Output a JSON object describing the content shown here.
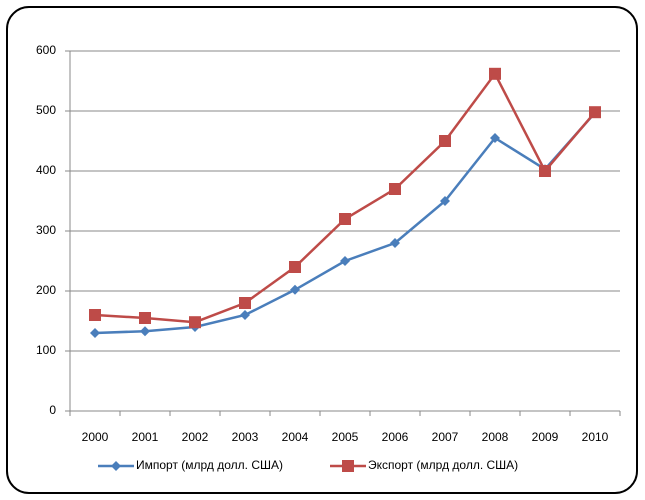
{
  "chart_data": {
    "type": "line",
    "categories": [
      "2000",
      "2001",
      "2002",
      "2003",
      "2004",
      "2005",
      "2006",
      "2007",
      "2008",
      "2009",
      "2010"
    ],
    "series": [
      {
        "name": "Импорт (млрд долл. США)",
        "color": "#4a7ebb",
        "marker": "diamond",
        "values": [
          130,
          133,
          140,
          160,
          202,
          250,
          280,
          350,
          455,
          403,
          497
        ]
      },
      {
        "name": "Экспорт (млрд долл. США)",
        "color": "#be4b48",
        "marker": "square",
        "values": [
          160,
          155,
          148,
          180,
          240,
          320,
          370,
          450,
          562,
          400,
          498
        ]
      }
    ],
    "ylim": [
      0,
      600
    ],
    "yticks": [
      0,
      100,
      200,
      300,
      400,
      500,
      600
    ],
    "grid": true,
    "legend": "bottom"
  }
}
